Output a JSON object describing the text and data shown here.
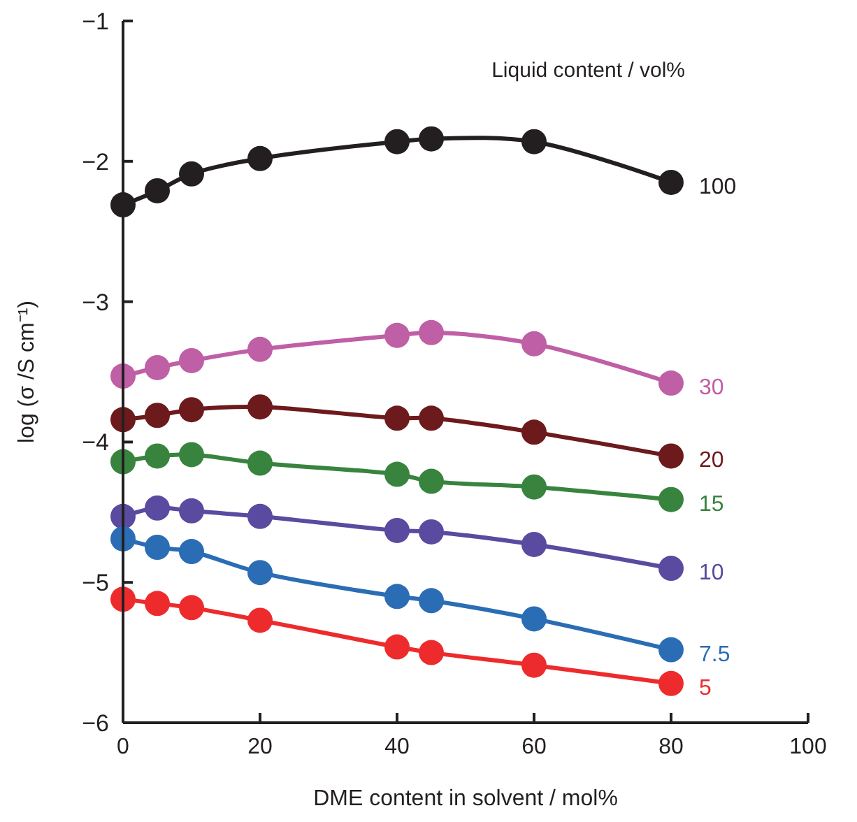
{
  "chart_data": {
    "type": "line",
    "xlabel": "DME content in solvent / mol%",
    "ylabel": "log (σ /S cm⁻¹)",
    "legend_title": "Liquid content / vol%",
    "x": [
      0,
      5,
      10,
      20,
      40,
      45,
      60,
      80
    ],
    "xlim": [
      0,
      100
    ],
    "xticks": [
      0,
      20,
      40,
      60,
      80,
      100
    ],
    "ylim": [
      -6,
      -1
    ],
    "yticks": [
      -6,
      -5,
      -4,
      -3,
      -2,
      -1
    ],
    "marker": "circle",
    "grid": false,
    "series": [
      {
        "name": "100",
        "color": "#231f20",
        "values": [
          -2.31,
          -2.21,
          -2.09,
          -1.98,
          -1.86,
          -1.84,
          -1.86,
          -2.15
        ]
      },
      {
        "name": "30",
        "color": "#bf5fa5",
        "values": [
          -3.53,
          -3.47,
          -3.42,
          -3.34,
          -3.24,
          -3.22,
          -3.3,
          -3.58
        ]
      },
      {
        "name": "20",
        "color": "#6d1a1c",
        "values": [
          -3.84,
          -3.81,
          -3.77,
          -3.75,
          -3.83,
          -3.83,
          -3.93,
          -4.1
        ]
      },
      {
        "name": "15",
        "color": "#38843f",
        "values": [
          -4.14,
          -4.1,
          -4.09,
          -4.15,
          -4.23,
          -4.28,
          -4.32,
          -4.41
        ]
      },
      {
        "name": "10",
        "color": "#5a4aa0",
        "values": [
          -4.53,
          -4.47,
          -4.49,
          -4.53,
          -4.63,
          -4.64,
          -4.73,
          -4.9
        ]
      },
      {
        "name": "7.5",
        "color": "#2b6db5",
        "values": [
          -4.69,
          -4.75,
          -4.78,
          -4.93,
          -5.1,
          -5.13,
          -5.26,
          -5.48
        ]
      },
      {
        "name": "5",
        "color": "#ee2b2c",
        "values": [
          -5.12,
          -5.15,
          -5.18,
          -5.27,
          -5.46,
          -5.5,
          -5.59,
          -5.72
        ]
      }
    ]
  }
}
